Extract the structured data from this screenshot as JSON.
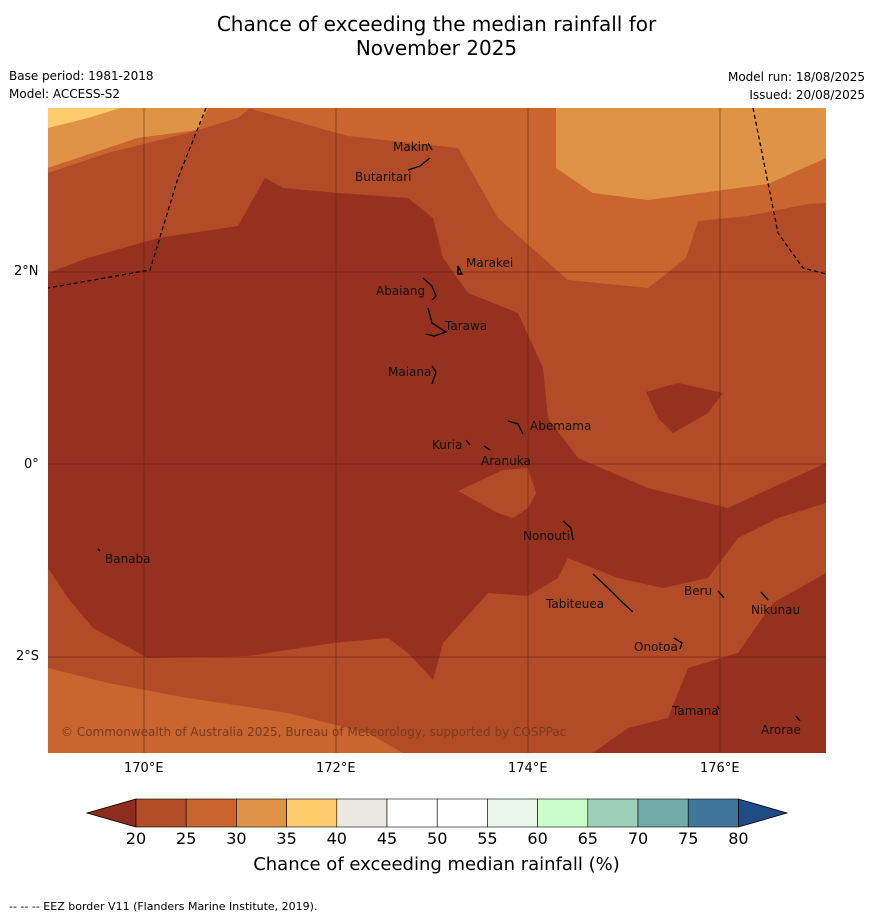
{
  "title_line1": "Chance of exceeding the median rainfall for",
  "title_line2": "November 2025",
  "base_period": "Base period: 1981-2018",
  "model": "Model: ACCESS-S2",
  "model_run": "Model run: 18/08/2025",
  "issued": "Issued: 20/08/2025",
  "copyright": "© Commonwealth of Australia 2025, Bureau of Meteorology, supported by COSPPac",
  "lon_labels": [
    "170°E",
    "172°E",
    "174°E",
    "176°E"
  ],
  "lat_labels": [
    "2°N",
    "0°",
    "2°S"
  ],
  "places": {
    "makin": "Makin",
    "butaritari": "Butaritari",
    "marakei": "Marakei",
    "abaiang": "Abaiang",
    "tarawa": "Tarawa",
    "maiana": "Maiana",
    "abemama": "Abemama",
    "kuria": "Kuria",
    "aranuka": "Aranuka",
    "nonouti": "Nonouti",
    "banaba": "Banaba",
    "beru": "Beru",
    "tabiteuea": "Tabiteuea",
    "nikunau": "Nikunau",
    "onotoa": "Onotoa",
    "tamana": "Tamana",
    "arorae": "Arorae"
  },
  "colorbar": {
    "ticks": [
      "20",
      "25",
      "30",
      "35",
      "40",
      "45",
      "50",
      "55",
      "60",
      "65",
      "70",
      "75",
      "80"
    ],
    "colors": [
      "#8e2c1e",
      "#b24b27",
      "#ca6530",
      "#df9346",
      "#fecb6c",
      "#ebe8e4",
      "#ffffff",
      "#ffffff",
      "#e9f5e9",
      "#cafdca",
      "#9ed0b9",
      "#72aaa8",
      "#41769a",
      "#1f4c85"
    ],
    "title": "Chance of exceeding median rainfall (%)"
  },
  "footer": "--  --  -- EEZ border V11 (Flanders Marine Institute, 2019)."
}
